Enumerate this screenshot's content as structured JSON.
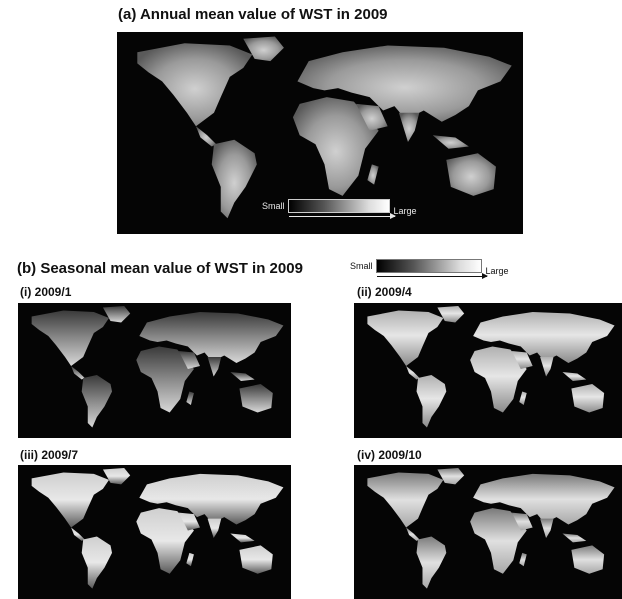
{
  "panel_a": {
    "title": "(a) Annual mean value of WST in 2009",
    "legend": {
      "small_label": "Small",
      "large_label": "Large"
    }
  },
  "panel_b": {
    "title": "(b) Seasonal mean value of WST in 2009",
    "legend": {
      "small_label": "Small",
      "large_label": "Large"
    },
    "maps": [
      {
        "label": "(i) 2009/1"
      },
      {
        "label": "(ii) 2009/4"
      },
      {
        "label": "(iii) 2009/7"
      },
      {
        "label": "(iv) 2009/10"
      }
    ]
  },
  "colors": {
    "ocean": "#050505",
    "land_low": "#333333",
    "land_high": "#f0f0f0"
  }
}
